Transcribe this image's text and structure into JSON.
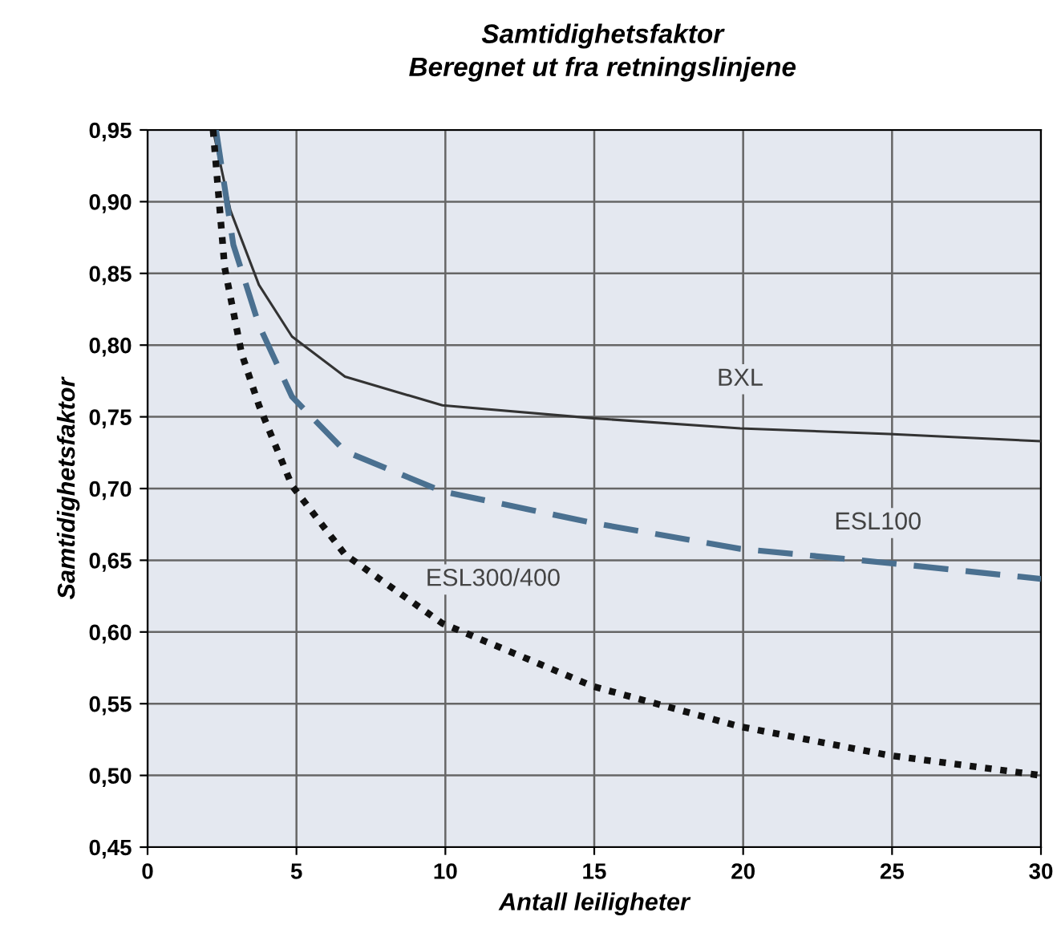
{
  "chart_data": {
    "type": "line",
    "title": "Samtidighetsfaktor",
    "subtitle": "Beregnet ut fra retningslinjene",
    "xlabel": "Antall leiligheter",
    "ylabel": "Samtidighetsfaktor",
    "xlim": [
      0,
      30
    ],
    "xticks": [
      0,
      5,
      10,
      15,
      20,
      25,
      30
    ],
    "ylim": [
      0.45,
      0.95
    ],
    "yticks": [
      {
        "value": 0.45,
        "label": "0,45"
      },
      {
        "value": 0.5,
        "label": "0,50"
      },
      {
        "value": 0.55,
        "label": "0,55"
      },
      {
        "value": 0.6,
        "label": "0,60"
      },
      {
        "value": 0.65,
        "label": "0,65"
      },
      {
        "value": 0.7,
        "label": "0,70"
      },
      {
        "value": 0.75,
        "label": "0,75"
      },
      {
        "value": 0.8,
        "label": "0,80"
      },
      {
        "value": 0.85,
        "label": "0,85"
      },
      {
        "value": 0.9,
        "label": "0,90"
      },
      {
        "value": 0.95,
        "label": "0,95"
      }
    ],
    "grid": true,
    "legend": false,
    "marker": "none",
    "series": [
      {
        "name": "BXL",
        "color": "#333333",
        "line_style": "solid",
        "x": [
          2.2,
          2.78,
          3.74,
          4.85,
          6.63,
          9.9,
          14.97,
          19.9,
          24.9,
          30
        ],
        "values": [
          0.95,
          0.894,
          0.842,
          0.806,
          0.778,
          0.758,
          0.749,
          0.742,
          0.738,
          0.733
        ]
      },
      {
        "name": "ESL100",
        "color": "#4a7090",
        "line_style": "dashed",
        "x": [
          2.3,
          2.88,
          3.74,
          4.85,
          6.63,
          9.9,
          14.97,
          19.9,
          24.9,
          30
        ],
        "values": [
          0.95,
          0.87,
          0.814,
          0.764,
          0.726,
          0.698,
          0.676,
          0.658,
          0.648,
          0.637
        ]
      },
      {
        "name": "ESL300/400",
        "color": "#111111",
        "line_style": "dotted",
        "x": [
          2.2,
          2.59,
          3.16,
          3.74,
          4.85,
          6.63,
          9.9,
          14.97,
          19.9,
          24.9,
          30
        ],
        "values": [
          0.95,
          0.854,
          0.794,
          0.758,
          0.702,
          0.654,
          0.606,
          0.562,
          0.534,
          0.514,
          0.5
        ]
      }
    ]
  }
}
